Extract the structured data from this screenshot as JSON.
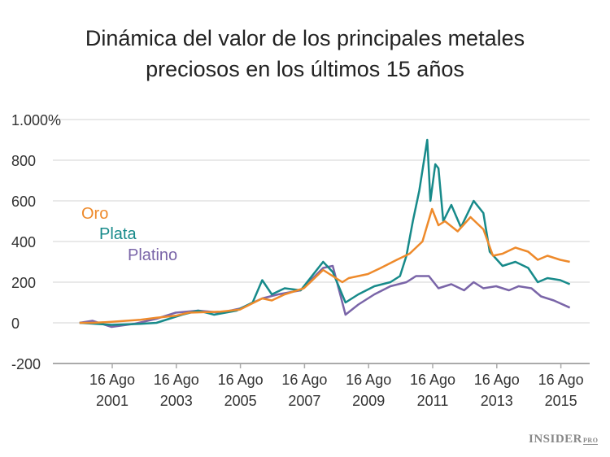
{
  "chart_data": {
    "type": "line",
    "title_lines": [
      "Dinámica del valor de los principales metales",
      "preciosos en los últimos 15 años"
    ],
    "ylim": [
      -200,
      1000
    ],
    "yticks": [
      -200,
      0,
      200,
      400,
      600,
      800,
      1000
    ],
    "ytick_labels": [
      "-200",
      "0",
      "200",
      "400",
      "600",
      "800",
      "1.000%"
    ],
    "xticks": [
      {
        "x": 2001.62,
        "line1": "16 Ago",
        "line2": "2001"
      },
      {
        "x": 2003.62,
        "line1": "16 Ago",
        "line2": "2003"
      },
      {
        "x": 2005.62,
        "line1": "16 Ago",
        "line2": "2005"
      },
      {
        "x": 2007.62,
        "line1": "16 Ago",
        "line2": "2007"
      },
      {
        "x": 2009.62,
        "line1": "16 Ago",
        "line2": "2009"
      },
      {
        "x": 2011.62,
        "line1": "16 Ago",
        "line2": "2011"
      },
      {
        "x": 2013.62,
        "line1": "16 Ago",
        "line2": "2013"
      },
      {
        "x": 2015.62,
        "line1": "16 Ago",
        "line2": "2015"
      }
    ],
    "grid": true,
    "legend_placement": "left, inline labels",
    "series": [
      {
        "name": "Oro",
        "color": "#ee8a2b",
        "x": [
          2000.6,
          2001,
          2001.6,
          2002.5,
          2003,
          2003.6,
          2004,
          2005,
          2005.6,
          2006.3,
          2006.6,
          2007,
          2007.6,
          2008.2,
          2008.8,
          2009,
          2009.6,
          2010,
          2010.5,
          2010.9,
          2011.3,
          2011.6,
          2011.8,
          2012,
          2012.4,
          2012.8,
          2013.2,
          2013.5,
          2013.8,
          2014.2,
          2014.6,
          2014.9,
          2015.2,
          2015.6,
          2015.9
        ],
        "y": [
          0,
          0,
          5,
          15,
          25,
          35,
          50,
          55,
          65,
          120,
          110,
          140,
          170,
          260,
          200,
          220,
          240,
          270,
          310,
          340,
          400,
          560,
          480,
          500,
          450,
          520,
          460,
          330,
          340,
          370,
          350,
          310,
          330,
          310,
          300
        ]
      },
      {
        "name": "Plata",
        "color": "#178a8a",
        "x": [
          2000.6,
          2001.6,
          2002.5,
          2003,
          2003.8,
          2004.3,
          2004.8,
          2005.5,
          2006,
          2006.3,
          2006.6,
          2007,
          2007.5,
          2008.2,
          2008.5,
          2008.9,
          2009.3,
          2009.8,
          2010.3,
          2010.6,
          2010.8,
          2011.0,
          2011.2,
          2011.45,
          2011.55,
          2011.7,
          2011.8,
          2011.95,
          2012.2,
          2012.5,
          2012.9,
          2013.2,
          2013.4,
          2013.8,
          2014.2,
          2014.6,
          2014.9,
          2015.2,
          2015.6,
          2015.9
        ],
        "y": [
          0,
          -10,
          -5,
          0,
          40,
          60,
          40,
          60,
          100,
          210,
          140,
          170,
          160,
          300,
          250,
          100,
          140,
          180,
          200,
          230,
          330,
          500,
          650,
          900,
          600,
          780,
          760,
          500,
          580,
          470,
          600,
          540,
          350,
          280,
          300,
          270,
          200,
          220,
          210,
          190
        ]
      },
      {
        "name": "Platino",
        "color": "#7a65a8",
        "x": [
          2000.6,
          2001,
          2001.6,
          2002.3,
          2003,
          2003.6,
          2004.3,
          2005,
          2005.6,
          2006.3,
          2006.8,
          2007.5,
          2008.2,
          2008.5,
          2008.9,
          2009.3,
          2009.8,
          2010.3,
          2010.8,
          2011.1,
          2011.5,
          2011.8,
          2012.2,
          2012.6,
          2012.9,
          2013.2,
          2013.6,
          2014.0,
          2014.3,
          2014.7,
          2015.0,
          2015.4,
          2015.9
        ],
        "y": [
          0,
          10,
          -20,
          -5,
          20,
          50,
          60,
          50,
          70,
          120,
          140,
          160,
          270,
          280,
          40,
          90,
          140,
          180,
          200,
          230,
          230,
          170,
          190,
          160,
          200,
          170,
          180,
          160,
          180,
          170,
          130,
          110,
          75
        ]
      }
    ]
  },
  "branding": {
    "logo_main": "INSIDER",
    "logo_sub": "PRO"
  }
}
